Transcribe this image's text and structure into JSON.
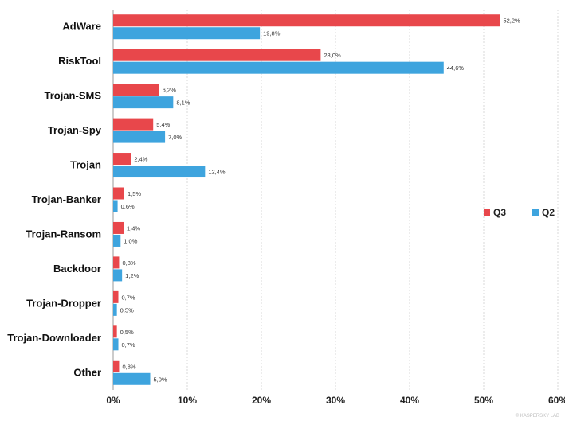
{
  "chart_data": {
    "type": "bar",
    "orientation": "horizontal",
    "categories": [
      "AdWare",
      "RiskTool",
      "Trojan-SMS",
      "Trojan-Spy",
      "Trojan",
      "Trojan-Banker",
      "Trojan-Ransom",
      "Backdoor",
      "Trojan-Dropper",
      "Trojan-Downloader",
      "Other"
    ],
    "series": [
      {
        "name": "Q3",
        "color": "#e8474b",
        "values": [
          52.2,
          28.0,
          6.2,
          5.4,
          2.4,
          1.5,
          1.4,
          0.8,
          0.7,
          0.5,
          0.8
        ],
        "labels": [
          "52,2%",
          "28,0%",
          "6,2%",
          "5,4%",
          "2,4%",
          "1,5%",
          "1,4%",
          "0,8%",
          "0,7%",
          "0,5%",
          "0,8%"
        ]
      },
      {
        "name": "Q2",
        "color": "#3ea4de",
        "values": [
          19.8,
          44.6,
          8.1,
          7.0,
          12.4,
          0.6,
          1.0,
          1.2,
          0.5,
          0.7,
          5.0
        ],
        "labels": [
          "19,8%",
          "44,6%",
          "8,1%",
          "7,0%",
          "12,4%",
          "0,6%",
          "1,0%",
          "1,2%",
          "0,5%",
          "0,7%",
          "5,0%"
        ]
      }
    ],
    "xlim": [
      0,
      60
    ],
    "xticks": [
      0,
      10,
      20,
      30,
      40,
      50,
      60
    ],
    "xtick_labels": [
      "0%",
      "10%",
      "20%",
      "30%",
      "40%",
      "50%",
      "60%"
    ],
    "grid": true,
    "legend_position": "right",
    "credit": "© KASPERSKY LAB"
  }
}
